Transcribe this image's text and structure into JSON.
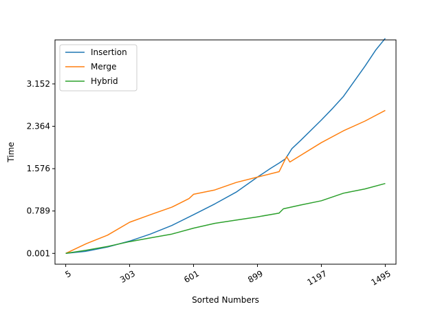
{
  "chart_data": {
    "type": "line",
    "xlabel": "Sorted Numbers",
    "ylabel": "Time",
    "xlim": [
      -45,
      1545
    ],
    "ylim": [
      -0.2,
      3.97
    ],
    "xticks": [
      5,
      303,
      601,
      899,
      1197,
      1495
    ],
    "xtick_labels": [
      "5",
      "303",
      "601",
      "899",
      "1197",
      "1495"
    ],
    "yticks": [
      0.001,
      0.789,
      1.576,
      2.364,
      3.152
    ],
    "ytick_labels": [
      "0.001",
      "0.789",
      "1.576",
      "2.364",
      "3.152"
    ],
    "grid": false,
    "legend_position": "top-left",
    "series": [
      {
        "name": "Insertion",
        "color": "#1f77b4",
        "x": [
          5,
          100,
          200,
          303,
          400,
          500,
          601,
          700,
          800,
          899,
          960,
          1000,
          1030,
          1060,
          1100,
          1197,
          1250,
          1300,
          1350,
          1400,
          1450,
          1495
        ],
        "y": [
          0.001,
          0.04,
          0.12,
          0.23,
          0.36,
          0.52,
          0.72,
          0.92,
          1.14,
          1.42,
          1.58,
          1.68,
          1.76,
          1.95,
          2.1,
          2.48,
          2.7,
          2.92,
          3.2,
          3.48,
          3.78,
          4.0
        ]
      },
      {
        "name": "Merge",
        "color": "#ff7f0e",
        "x": [
          5,
          100,
          200,
          303,
          400,
          500,
          580,
          601,
          700,
          800,
          899,
          1000,
          1035,
          1050,
          1197,
          1300,
          1400,
          1495
        ],
        "y": [
          0.001,
          0.18,
          0.34,
          0.58,
          0.72,
          0.86,
          1.02,
          1.1,
          1.18,
          1.32,
          1.42,
          1.52,
          1.8,
          1.7,
          2.06,
          2.28,
          2.46,
          2.66
        ]
      },
      {
        "name": "Hybrid",
        "color": "#2ca02c",
        "x": [
          5,
          100,
          200,
          303,
          400,
          500,
          601,
          700,
          800,
          899,
          1000,
          1020,
          1100,
          1197,
          1300,
          1400,
          1495
        ],
        "y": [
          0.001,
          0.06,
          0.13,
          0.22,
          0.29,
          0.36,
          0.47,
          0.56,
          0.62,
          0.68,
          0.75,
          0.83,
          0.9,
          0.98,
          1.12,
          1.2,
          1.3
        ]
      }
    ]
  }
}
